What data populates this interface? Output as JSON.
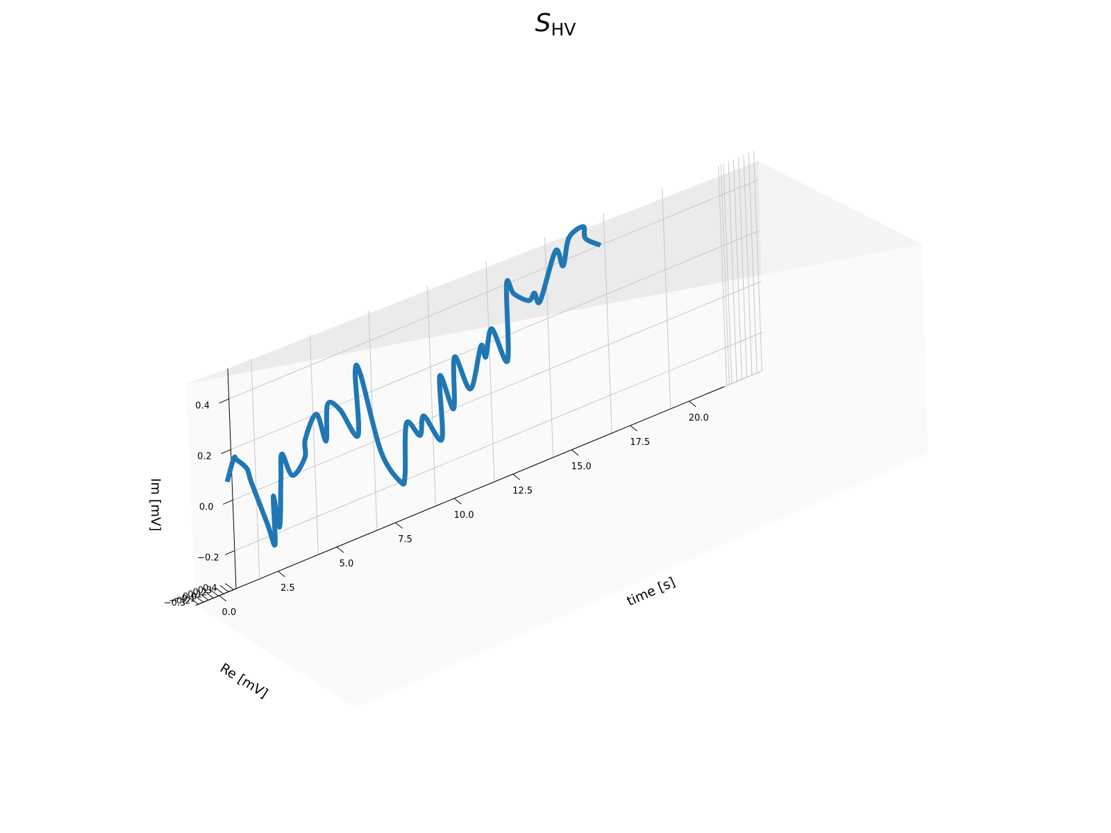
{
  "chart_data": {
    "type": "line3d",
    "title": {
      "symbol": "S",
      "subscript": "HV"
    },
    "xlabel": "time [s]",
    "ylabel": "Re [mV]",
    "zlabel": "Im [mV]",
    "x_ticks": [
      "0.0",
      "2.5",
      "5.0",
      "7.5",
      "10.0",
      "12.5",
      "15.0",
      "17.5",
      "20.0"
    ],
    "y_ticks": [
      "0.4",
      "0.3",
      "0.2",
      "0.1",
      "0.0",
      "−0.1",
      "−0.2",
      "−0.3"
    ],
    "z_ticks": [
      "−0.2",
      "0.0",
      "0.2",
      "0.4"
    ],
    "xlim": [
      -1.0,
      21.5
    ],
    "ylim": [
      -0.35,
      0.45
    ],
    "zlim": [
      -0.35,
      0.52
    ],
    "grid": true,
    "series": [
      {
        "color": "#1f77b4",
        "points": [
          [
            -0.5,
            0.12,
            0.08
          ],
          [
            -0.1,
            0.08,
            0.16
          ],
          [
            0.2,
            0.0,
            0.15
          ],
          [
            0.5,
            0.05,
            0.1
          ],
          [
            0.6,
            0.08,
            0.04
          ],
          [
            1.0,
            0.18,
            -0.15
          ],
          [
            1.2,
            0.22,
            -0.24
          ],
          [
            1.35,
            0.15,
            -0.05
          ],
          [
            1.5,
            0.18,
            -0.18
          ],
          [
            1.8,
            0.1,
            0.0
          ],
          [
            2.1,
            0.0,
            0.1
          ],
          [
            2.4,
            0.05,
            0.0
          ],
          [
            2.8,
            0.12,
            0.05
          ],
          [
            3.1,
            0.0,
            0.12
          ],
          [
            3.5,
            0.05,
            0.2
          ],
          [
            3.8,
            0.08,
            0.08
          ],
          [
            4.2,
            -0.05,
            0.22
          ],
          [
            4.6,
            0.0,
            0.18
          ],
          [
            5.0,
            0.15,
            0.05
          ],
          [
            5.3,
            0.0,
            0.3
          ],
          [
            5.7,
            -0.08,
            0.28
          ],
          [
            6.0,
            0.12,
            -0.05
          ],
          [
            6.5,
            0.25,
            -0.2
          ],
          [
            6.8,
            0.2,
            -0.18
          ],
          [
            7.2,
            0.08,
            0.02
          ],
          [
            7.6,
            0.15,
            -0.05
          ],
          [
            8.0,
            0.05,
            0.02
          ],
          [
            8.4,
            0.2,
            -0.1
          ],
          [
            8.8,
            0.02,
            0.15
          ],
          [
            9.2,
            0.08,
            0.0
          ],
          [
            9.6,
            -0.05,
            0.2
          ],
          [
            10.0,
            0.05,
            0.05
          ],
          [
            10.4,
            0.1,
            0.2
          ],
          [
            10.8,
            0.0,
            0.15
          ],
          [
            11.2,
            -0.05,
            0.25
          ],
          [
            11.6,
            0.05,
            0.1
          ],
          [
            12.0,
            -0.1,
            0.4
          ],
          [
            12.4,
            -0.15,
            0.35
          ],
          [
            12.8,
            -0.05,
            0.3
          ],
          [
            13.2,
            -0.12,
            0.32
          ],
          [
            13.6,
            -0.2,
            0.28
          ],
          [
            14.0,
            -0.05,
            0.45
          ],
          [
            14.4,
            -0.1,
            0.38
          ],
          [
            14.8,
            -0.15,
            0.48
          ],
          [
            15.2,
            -0.05,
            0.5
          ],
          [
            15.6,
            -0.2,
            0.45
          ],
          [
            16.0,
            -0.1,
            0.4
          ]
        ]
      }
    ]
  }
}
